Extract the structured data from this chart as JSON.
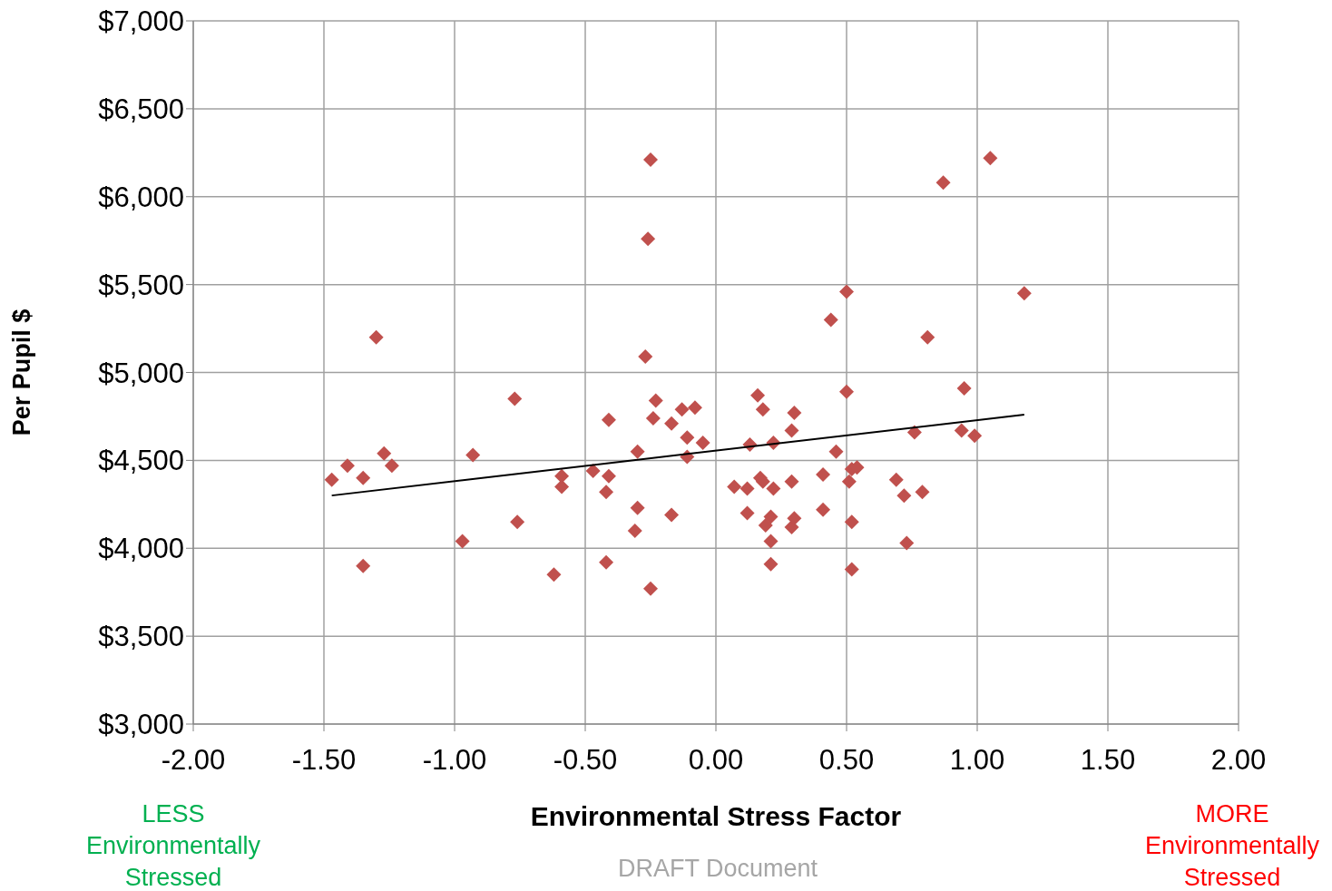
{
  "chart_data": {
    "type": "scatter",
    "xlabel": "Environmental Stress Factor",
    "ylabel": "Per Pupil $",
    "annotations": [
      "LESS Environmentally Stressed",
      "MORE Environmentally Stressed",
      "DRAFT Document"
    ],
    "xlim": [
      -2,
      2
    ],
    "xticks": [
      {
        "value": -2,
        "label": "-2.00"
      },
      {
        "value": -1.5,
        "label": "-1.50"
      },
      {
        "value": -1,
        "label": "-1.00"
      },
      {
        "value": -0.5,
        "label": "-0.50"
      },
      {
        "value": 0,
        "label": "0.00"
      },
      {
        "value": 0.5,
        "label": "0.50"
      },
      {
        "value": 1,
        "label": "1.00"
      },
      {
        "value": 1.5,
        "label": "1.50"
      },
      {
        "value": 2,
        "label": "2.00"
      }
    ],
    "ylim": [
      3000,
      7000
    ],
    "yticks": [
      {
        "value": 3000,
        "label": "$3,000"
      },
      {
        "value": 3500,
        "label": "$3,500"
      },
      {
        "value": 4000,
        "label": "$4,000"
      },
      {
        "value": 4500,
        "label": "$4,500"
      },
      {
        "value": 5000,
        "label": "$5,000"
      },
      {
        "value": 5500,
        "label": "$5,500"
      },
      {
        "value": 6000,
        "label": "$6,000"
      },
      {
        "value": 6500,
        "label": "$6,500"
      },
      {
        "value": 7000,
        "label": "$7,000"
      }
    ],
    "grid": true,
    "marker": "diamond",
    "series": [
      {
        "color": "#c0504d",
        "x": [
          -1.47,
          -1.41,
          -1.35,
          -1.3,
          -1.35,
          -1.27,
          -1.24,
          -0.97,
          -0.93,
          -0.77,
          -0.76,
          -0.62,
          -0.59,
          -0.59,
          -0.47,
          -0.41,
          -0.41,
          -0.42,
          -0.42,
          -0.31,
          -0.3,
          -0.3,
          -0.27,
          -0.26,
          -0.25,
          -0.25,
          -0.23,
          -0.24,
          -0.17,
          -0.17,
          -0.13,
          -0.11,
          -0.11,
          -0.08,
          -0.05,
          0.07,
          0.12,
          0.13,
          0.12,
          0.16,
          0.17,
          0.18,
          0.18,
          0.19,
          0.21,
          0.21,
          0.21,
          0.22,
          0.22,
          0.29,
          0.29,
          0.29,
          0.3,
          0.3,
          0.41,
          0.41,
          0.46,
          0.44,
          0.5,
          0.5,
          0.51,
          0.52,
          0.54,
          0.52,
          0.52,
          0.69,
          0.72,
          0.73,
          0.76,
          0.79,
          0.81,
          0.87,
          0.95,
          0.94,
          0.99,
          1.05,
          1.18
        ],
        "values": [
          4390,
          4470,
          4400,
          5200,
          3900,
          4540,
          4470,
          4040,
          4530,
          4850,
          4150,
          3850,
          4350,
          4410,
          4440,
          4730,
          4410,
          4320,
          3920,
          4100,
          4550,
          4230,
          5090,
          5760,
          6210,
          3770,
          4840,
          4740,
          4710,
          4190,
          4790,
          4630,
          4520,
          4800,
          4600,
          4350,
          4340,
          4590,
          4200,
          4870,
          4400,
          4380,
          4790,
          4130,
          4180,
          4040,
          3910,
          4600,
          4340,
          4670,
          4120,
          4380,
          4170,
          4770,
          4420,
          4220,
          4550,
          5300,
          5460,
          4890,
          4380,
          4450,
          4460,
          4150,
          3880,
          4390,
          4300,
          4030,
          4660,
          4320,
          5200,
          6080,
          4910,
          4670,
          4640,
          6220,
          5450
        ]
      },
      {
        "type": "line",
        "color": "#000000",
        "marker": "none",
        "x": [
          -1.47,
          1.18
        ],
        "values": [
          4300,
          4760
        ]
      }
    ]
  }
}
